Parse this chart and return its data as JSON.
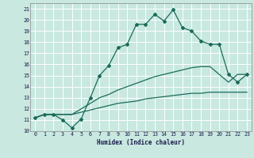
{
  "xlabel": "Humidex (Indice chaleur)",
  "xlim": [
    -0.5,
    23.5
  ],
  "ylim": [
    10,
    21.5
  ],
  "yticks": [
    10,
    11,
    12,
    13,
    14,
    15,
    16,
    17,
    18,
    19,
    20,
    21
  ],
  "xticks": [
    0,
    1,
    2,
    3,
    4,
    5,
    6,
    7,
    8,
    9,
    10,
    11,
    12,
    13,
    14,
    15,
    16,
    17,
    18,
    19,
    20,
    21,
    22,
    23
  ],
  "bg_color": "#c8e8e0",
  "grid_color": "#ffffff",
  "line_color": "#1a6b5a",
  "line1_x": [
    0,
    1,
    2,
    3,
    4,
    5,
    6,
    7,
    8,
    9,
    10,
    11,
    12,
    13,
    14,
    15,
    16,
    17,
    18,
    19,
    20,
    21,
    22,
    23
  ],
  "line1_y": [
    11.2,
    11.5,
    11.5,
    11.0,
    10.3,
    11.1,
    13.0,
    15.0,
    15.9,
    17.5,
    17.8,
    19.6,
    19.6,
    20.5,
    19.9,
    20.9,
    19.3,
    19.0,
    18.1,
    17.8,
    17.8,
    15.1,
    14.4,
    15.1
  ],
  "line2_x": [
    0,
    1,
    2,
    3,
    4,
    5,
    6,
    7,
    8,
    9,
    10,
    11,
    12,
    13,
    14,
    15,
    16,
    17,
    18,
    19,
    20,
    21,
    22,
    23
  ],
  "line2_y": [
    11.2,
    11.5,
    11.5,
    11.5,
    11.5,
    11.7,
    11.9,
    12.1,
    12.3,
    12.5,
    12.6,
    12.7,
    12.9,
    13.0,
    13.1,
    13.2,
    13.3,
    13.4,
    13.4,
    13.5,
    13.5,
    13.5,
    13.5,
    13.5
  ],
  "line3_x": [
    0,
    1,
    2,
    3,
    4,
    5,
    6,
    7,
    8,
    9,
    10,
    11,
    12,
    13,
    14,
    15,
    16,
    17,
    18,
    19,
    20,
    21,
    22,
    23
  ],
  "line3_y": [
    11.2,
    11.5,
    11.5,
    11.5,
    11.5,
    12.0,
    12.5,
    13.0,
    13.3,
    13.7,
    14.0,
    14.3,
    14.6,
    14.9,
    15.1,
    15.3,
    15.5,
    15.7,
    15.8,
    15.8,
    15.1,
    14.4,
    15.1,
    15.1
  ]
}
